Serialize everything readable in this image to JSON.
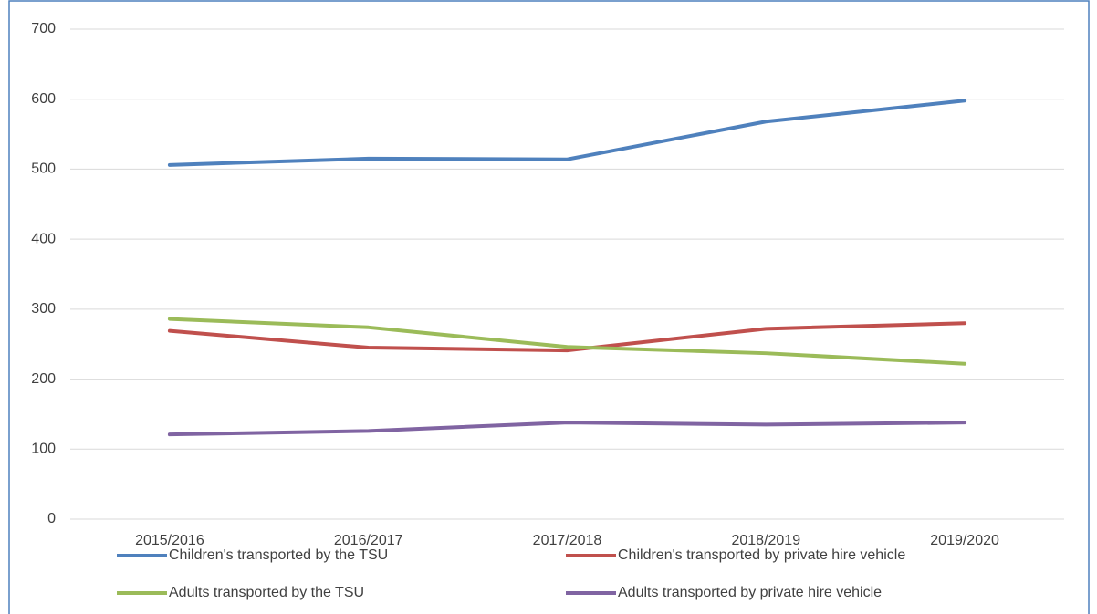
{
  "chart_data": {
    "type": "line",
    "categories": [
      "2015/2016",
      "2016/2017",
      "2017/2018",
      "2018/2019",
      "2019/2020"
    ],
    "series": [
      {
        "name": "Children's transported by the TSU",
        "color": "#4f81bd",
        "values": [
          506,
          515,
          514,
          568,
          598
        ]
      },
      {
        "name": "Children's transported by private hire vehicle",
        "color": "#c0504d",
        "values": [
          269,
          245,
          241,
          272,
          280
        ]
      },
      {
        "name": "Adults transported by the TSU",
        "color": "#9bbb59",
        "values": [
          286,
          274,
          246,
          237,
          222
        ]
      },
      {
        "name": "Adults transported by private hire vehicle",
        "color": "#8064a2",
        "values": [
          121,
          126,
          138,
          135,
          138
        ]
      }
    ],
    "ylim": [
      0,
      700
    ],
    "yticks": [
      0,
      100,
      200,
      300,
      400,
      500,
      600,
      700
    ],
    "grid": true,
    "legend": "bottom"
  }
}
